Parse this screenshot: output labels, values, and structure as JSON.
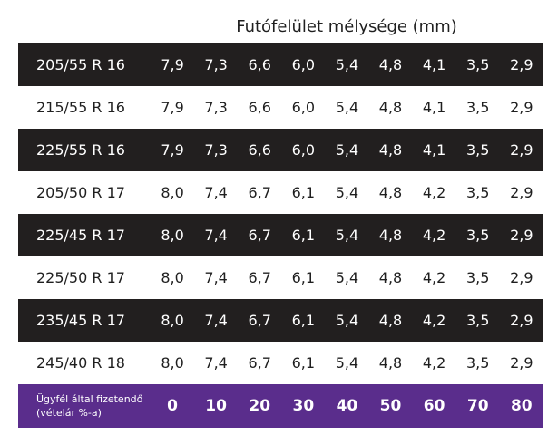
{
  "heading": "Futófelület mélysége (mm)",
  "rows": [
    {
      "size": "205/55 R 16",
      "style": "dark",
      "values": [
        "7,9",
        "7,3",
        "6,6",
        "6,0",
        "5,4",
        "4,8",
        "4,1",
        "3,5",
        "2,9"
      ]
    },
    {
      "size": "215/55 R 16",
      "style": "light",
      "values": [
        "7,9",
        "7,3",
        "6,6",
        "6,0",
        "5,4",
        "4,8",
        "4,1",
        "3,5",
        "2,9"
      ]
    },
    {
      "size": "225/55 R 16",
      "style": "dark",
      "values": [
        "7,9",
        "7,3",
        "6,6",
        "6,0",
        "5,4",
        "4,8",
        "4,1",
        "3,5",
        "2,9"
      ]
    },
    {
      "size": "205/50 R 17",
      "style": "light",
      "values": [
        "8,0",
        "7,4",
        "6,7",
        "6,1",
        "5,4",
        "4,8",
        "4,2",
        "3,5",
        "2,9"
      ]
    },
    {
      "size": "225/45 R 17",
      "style": "dark",
      "values": [
        "8,0",
        "7,4",
        "6,7",
        "6,1",
        "5,4",
        "4,8",
        "4,2",
        "3,5",
        "2,9"
      ]
    },
    {
      "size": "225/50 R 17",
      "style": "light",
      "values": [
        "8,0",
        "7,4",
        "6,7",
        "6,1",
        "5,4",
        "4,8",
        "4,2",
        "3,5",
        "2,9"
      ]
    },
    {
      "size": "235/45 R 17",
      "style": "dark",
      "values": [
        "8,0",
        "7,4",
        "6,7",
        "6,1",
        "5,4",
        "4,8",
        "4,2",
        "3,5",
        "2,9"
      ]
    },
    {
      "size": "245/40 R 18",
      "style": "light",
      "values": [
        "8,0",
        "7,4",
        "6,7",
        "6,1",
        "5,4",
        "4,8",
        "4,2",
        "3,5",
        "2,9"
      ]
    }
  ],
  "footer": {
    "label_line1": "Ügyfél által fizetendő",
    "label_line2": "(vételár %-a)",
    "values": [
      "0",
      "10",
      "20",
      "30",
      "40",
      "50",
      "60",
      "70",
      "80"
    ]
  },
  "colors": {
    "dark_row": "#221f1f",
    "light_row": "#ffffff",
    "footer_row": "#5a2d8c"
  }
}
